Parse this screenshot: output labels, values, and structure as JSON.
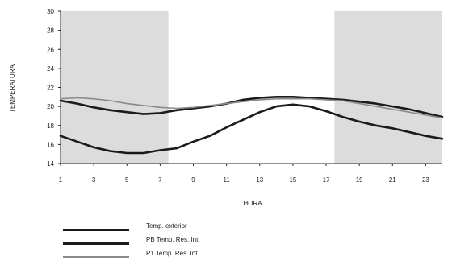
{
  "chart_data": {
    "type": "line",
    "xlabel": "HORA",
    "ylabel": "TEMPERATURA",
    "xlim": [
      1,
      24
    ],
    "ylim": [
      14,
      30
    ],
    "xticks": [
      1,
      3,
      5,
      7,
      9,
      11,
      13,
      15,
      17,
      19,
      21,
      23
    ],
    "yticks": [
      14,
      16,
      18,
      20,
      22,
      24,
      26,
      28,
      30
    ],
    "shaded_x_ranges": [
      [
        1,
        7.5
      ],
      [
        17.5,
        24
      ]
    ],
    "x": [
      1,
      2,
      3,
      4,
      5,
      6,
      7,
      8,
      9,
      10,
      11,
      12,
      13,
      14,
      15,
      16,
      17,
      18,
      19,
      20,
      21,
      22,
      23,
      24
    ],
    "series": [
      {
        "name": "Temp. exterior",
        "values": [
          16.9,
          16.3,
          15.7,
          15.3,
          15.1,
          15.1,
          15.4,
          15.6,
          16.3,
          16.9,
          17.8,
          18.6,
          19.4,
          20.0,
          20.2,
          20.0,
          19.5,
          18.9,
          18.4,
          18.0,
          17.7,
          17.3,
          16.9,
          16.6
        ],
        "color": "#1a1a1a",
        "width": 2.6
      },
      {
        "name": "PB Temp. Res. Int.",
        "values": [
          20.6,
          20.3,
          19.9,
          19.6,
          19.4,
          19.2,
          19.3,
          19.6,
          19.8,
          20.0,
          20.3,
          20.7,
          20.9,
          21.0,
          21.0,
          20.9,
          20.8,
          20.7,
          20.5,
          20.3,
          20.0,
          19.7,
          19.3,
          18.9
        ],
        "color": "#1a1a1a",
        "width": 2.6
      },
      {
        "name": "P1 Temp. Res. Int.",
        "values": [
          20.8,
          20.9,
          20.8,
          20.6,
          20.3,
          20.1,
          19.9,
          19.8,
          19.9,
          20.1,
          20.3,
          20.5,
          20.7,
          20.8,
          20.8,
          20.8,
          20.7,
          20.6,
          20.3,
          20.0,
          19.7,
          19.4,
          19.1,
          18.8
        ],
        "color": "#8a8a8a",
        "width": 1.6
      }
    ]
  }
}
